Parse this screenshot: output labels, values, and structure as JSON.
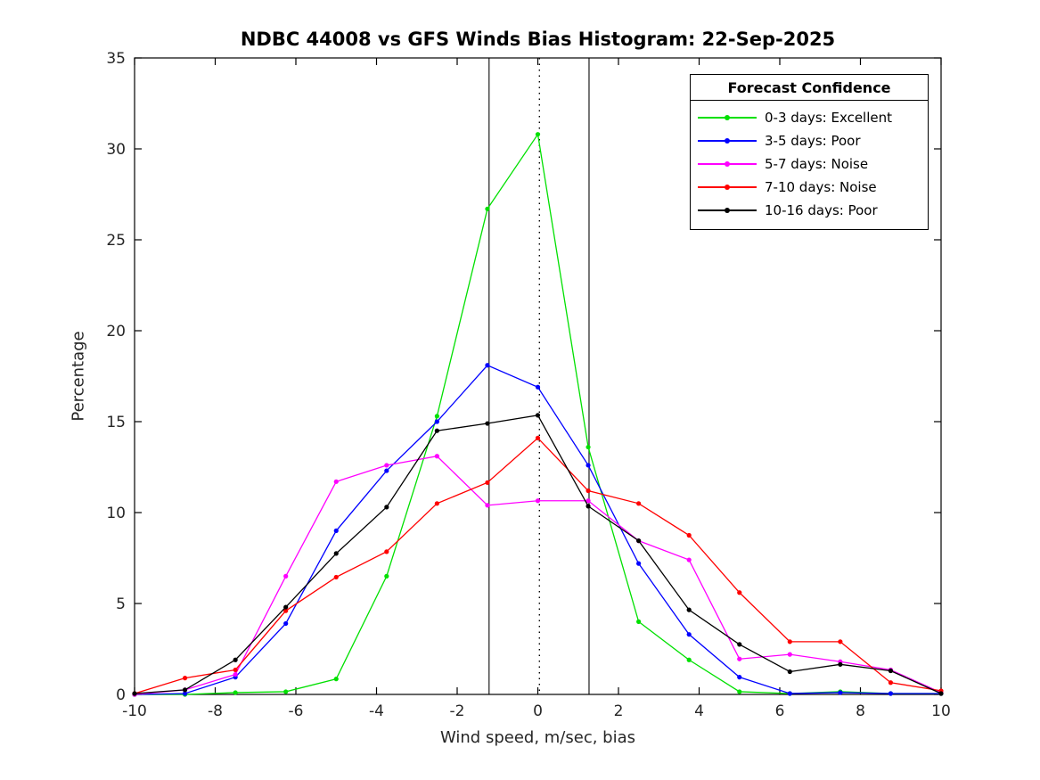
{
  "chart_data": {
    "type": "line",
    "title": "NDBC 44008 vs GFS Winds Bias Histogram: 22-Sep-2025",
    "xlabel": "Wind speed, m/sec, bias",
    "ylabel": "Percentage",
    "xlim": [
      -10,
      10
    ],
    "ylim": [
      0,
      35
    ],
    "xticks": [
      -10,
      -8,
      -6,
      -4,
      -2,
      0,
      2,
      4,
      6,
      8,
      10
    ],
    "yticks": [
      0,
      5,
      10,
      15,
      20,
      25,
      30,
      35
    ],
    "grid": false,
    "x": [
      -10,
      -8.75,
      -7.5,
      -6.25,
      -5,
      -3.75,
      -2.5,
      -1.25,
      0,
      1.25,
      2.5,
      3.75,
      5,
      6.25,
      7.5,
      8.75,
      10
    ],
    "series": [
      {
        "name": "0-3 days: Excellent",
        "color": "#00e000",
        "values": [
          0,
          0,
          0.1,
          0.15,
          0.85,
          6.5,
          15.3,
          26.7,
          30.8,
          13.6,
          4.0,
          1.9,
          0.15,
          0.05,
          0.15,
          0.05,
          0.05
        ]
      },
      {
        "name": "3-5 days: Poor",
        "color": "#0000ff",
        "values": [
          0,
          0.05,
          0.95,
          3.9,
          9.0,
          12.3,
          15.0,
          18.1,
          16.9,
          12.6,
          7.2,
          3.3,
          0.95,
          0.05,
          0.1,
          0.05,
          0.05
        ]
      },
      {
        "name": "5-7 days: Noise",
        "color": "#ff00ff",
        "values": [
          0,
          0.25,
          1.1,
          6.5,
          11.7,
          12.6,
          13.1,
          10.4,
          10.65,
          10.65,
          8.45,
          7.4,
          1.95,
          2.2,
          1.8,
          1.35,
          0.1
        ]
      },
      {
        "name": "7-10 days: Noise",
        "color": "#ff0000",
        "values": [
          0.05,
          0.9,
          1.35,
          4.6,
          6.45,
          7.85,
          10.5,
          11.65,
          14.1,
          11.2,
          10.5,
          8.75,
          5.6,
          2.9,
          2.9,
          0.65,
          0.2
        ]
      },
      {
        "name": "10-16 days: Poor",
        "color": "#000000",
        "values": [
          0.05,
          0.25,
          1.9,
          4.8,
          7.75,
          10.3,
          14.5,
          14.9,
          15.35,
          10.35,
          8.45,
          4.65,
          2.75,
          1.25,
          1.65,
          1.3,
          0.05
        ]
      }
    ],
    "annotations": {
      "dotted_vline_x": 0.04,
      "dotted_vline_color": "#000000",
      "solid_vlines_x": [
        -1.21,
        1.27
      ],
      "solid_vline_color": "#3c3c3c"
    },
    "legend": {
      "title": "Forecast Confidence",
      "position": "top-right"
    }
  }
}
